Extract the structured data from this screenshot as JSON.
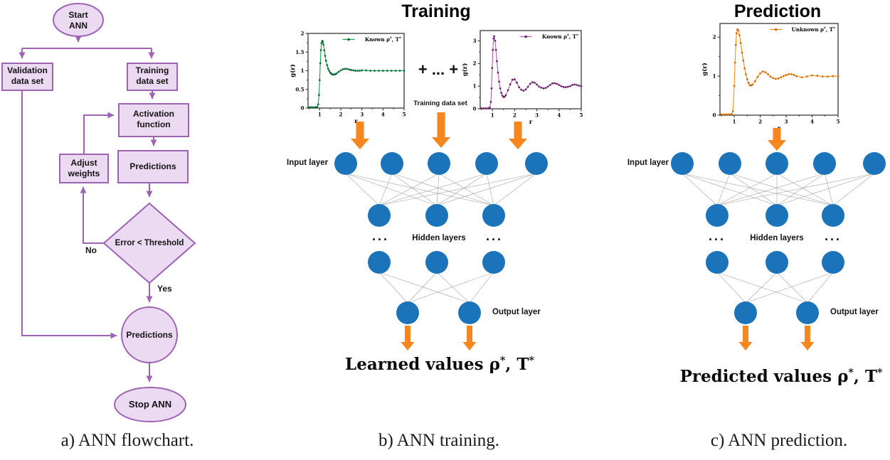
{
  "panels": {
    "flowchart": {
      "caption": "a) ANN flowchart.",
      "nodes": {
        "start": "Start\nANN",
        "validation": "Validation\ndata set",
        "training": "Training\ndata set",
        "activation": "Activation\nfunction",
        "adjust": "Adjust\nweights",
        "predictions_box": "Predictions",
        "decision": "Error < Threshold",
        "predictions_circle": "Predictions",
        "stop": "Stop ANN"
      },
      "edge_labels": {
        "no": "No",
        "yes": "Yes"
      }
    },
    "training": {
      "title": "Training",
      "plus_text": "+ ... +",
      "dataset_label": "Training data set",
      "network": {
        "input_label": "Input layer",
        "hidden_label": "Hidden layers",
        "output_label": "Output layer",
        "dots": "...",
        "input_nodes": 5,
        "hidden_rows": [
          3,
          3
        ],
        "output_nodes": 2
      },
      "result_text": "Learned values ρ*, T*",
      "caption": "b) ANN training."
    },
    "prediction": {
      "title": "Prediction",
      "network": {
        "input_label": "Input layer",
        "hidden_label": "Hidden layers",
        "output_label": "Output layer",
        "dots": "...",
        "input_nodes": 5,
        "hidden_rows": [
          3,
          3
        ],
        "output_nodes": 2
      },
      "result_text": "Predicted values ρ*, T*",
      "caption": "c) ANN prediction."
    }
  },
  "chart_data": [
    {
      "id": "training-gr-1",
      "type": "line",
      "xlabel": "r",
      "ylabel": "g(r)",
      "xlim": [
        0.45,
        5.0
      ],
      "ylim": [
        0,
        2.0
      ],
      "xticks": [
        1,
        2,
        3,
        4,
        5
      ],
      "yticks": [
        0,
        0.5,
        1,
        1.5,
        2
      ],
      "legend_position": "top-right",
      "series": [
        {
          "name": "Known ρ*, T*",
          "color": "#10a14e",
          "marker_color": "#0b6b34",
          "x": [
            0.5,
            0.6,
            0.7,
            0.8,
            0.88,
            0.93,
            0.97,
            1.0,
            1.03,
            1.06,
            1.09,
            1.12,
            1.15,
            1.18,
            1.22,
            1.26,
            1.3,
            1.35,
            1.4,
            1.45,
            1.5,
            1.55,
            1.6,
            1.65,
            1.7,
            1.75,
            1.8,
            1.9,
            2.0,
            2.1,
            2.2,
            2.3,
            2.4,
            2.5,
            2.6,
            2.7,
            2.8,
            2.9,
            3.0,
            3.2,
            3.4,
            3.6,
            3.8,
            4.0,
            4.2,
            4.4,
            4.6,
            4.8,
            5.0
          ],
          "y": [
            0.02,
            0.02,
            0.02,
            0.02,
            0.03,
            0.1,
            0.35,
            0.75,
            1.2,
            1.55,
            1.74,
            1.8,
            1.78,
            1.7,
            1.55,
            1.4,
            1.27,
            1.15,
            1.06,
            1.0,
            0.95,
            0.92,
            0.9,
            0.9,
            0.9,
            0.91,
            0.93,
            0.97,
            1.01,
            1.04,
            1.05,
            1.05,
            1.03,
            1.02,
            1.01,
            1.0,
            1.0,
            1.0,
            1.01,
            1.01,
            1.0,
            1.0,
            1.0,
            1.0,
            1.0,
            1.0,
            1.0,
            1.0,
            1.0
          ]
        }
      ]
    },
    {
      "id": "training-gr-2",
      "type": "line",
      "xlabel": "r",
      "ylabel": "g(r)",
      "xlim": [
        0.45,
        5.0
      ],
      "ylim": [
        0,
        3.45
      ],
      "xticks": [
        1,
        2,
        3,
        4,
        5
      ],
      "yticks": [
        0,
        1,
        2,
        3
      ],
      "legend_position": "top-right",
      "series": [
        {
          "name": "Known ρ*, T*",
          "color": "#b85cb8",
          "marker_color": "#6b2465",
          "x": [
            0.5,
            0.6,
            0.7,
            0.8,
            0.88,
            0.93,
            0.96,
            0.99,
            1.02,
            1.05,
            1.08,
            1.12,
            1.16,
            1.2,
            1.25,
            1.3,
            1.35,
            1.4,
            1.45,
            1.5,
            1.55,
            1.6,
            1.7,
            1.8,
            1.9,
            2.0,
            2.1,
            2.2,
            2.3,
            2.4,
            2.5,
            2.6,
            2.7,
            2.8,
            2.9,
            3.0,
            3.1,
            3.2,
            3.3,
            3.4,
            3.5,
            3.6,
            3.7,
            3.8,
            3.9,
            4.0,
            4.1,
            4.2,
            4.3,
            4.4,
            4.5,
            4.6,
            4.7,
            4.8,
            4.9,
            5.0
          ],
          "y": [
            0.02,
            0.02,
            0.02,
            0.02,
            0.05,
            0.3,
            0.9,
            1.8,
            2.6,
            3.1,
            3.2,
            3.0,
            2.6,
            2.1,
            1.6,
            1.2,
            0.9,
            0.7,
            0.58,
            0.52,
            0.53,
            0.6,
            0.82,
            1.08,
            1.28,
            1.3,
            1.15,
            0.95,
            0.84,
            0.8,
            0.85,
            0.97,
            1.1,
            1.17,
            1.15,
            1.07,
            0.98,
            0.93,
            0.9,
            0.92,
            0.98,
            1.05,
            1.12,
            1.13,
            1.1,
            1.05,
            1.0,
            0.96,
            0.95,
            0.97,
            1.0,
            1.05,
            1.07,
            1.05,
            1.02,
            1.0
          ]
        }
      ]
    },
    {
      "id": "prediction-gr",
      "type": "line",
      "xlabel": "r",
      "ylabel": "g(r)",
      "xlim": [
        0.45,
        5.0
      ],
      "ylim": [
        0,
        2.35
      ],
      "xticks": [
        1,
        2,
        3,
        4,
        5
      ],
      "yticks": [
        0,
        1,
        2
      ],
      "legend_position": "top-right",
      "series": [
        {
          "name": "Unknown ρ*, T*",
          "color": "#f78f1e",
          "marker_color": "#d96d00",
          "x": [
            0.5,
            0.6,
            0.7,
            0.8,
            0.9,
            0.95,
            1.0,
            1.03,
            1.06,
            1.09,
            1.12,
            1.16,
            1.2,
            1.25,
            1.3,
            1.35,
            1.4,
            1.45,
            1.5,
            1.55,
            1.6,
            1.65,
            1.7,
            1.8,
            1.9,
            2.0,
            2.1,
            2.2,
            2.3,
            2.4,
            2.5,
            2.6,
            2.7,
            2.8,
            2.9,
            3.0,
            3.1,
            3.2,
            3.3,
            3.4,
            3.6,
            3.8,
            4.0,
            4.2,
            4.4,
            4.6,
            4.8,
            5.0
          ],
          "y": [
            0.02,
            0.02,
            0.02,
            0.02,
            0.03,
            0.1,
            0.75,
            1.35,
            1.8,
            2.1,
            2.2,
            2.17,
            2.05,
            1.85,
            1.6,
            1.4,
            1.2,
            1.05,
            0.92,
            0.83,
            0.77,
            0.76,
            0.78,
            0.87,
            0.98,
            1.07,
            1.12,
            1.1,
            1.05,
            0.99,
            0.95,
            0.93,
            0.94,
            0.97,
            1.0,
            1.03,
            1.05,
            1.05,
            1.03,
            1.0,
            0.97,
            0.99,
            1.02,
            1.01,
            0.99,
            0.99,
            1.0,
            1.0
          ]
        }
      ]
    }
  ],
  "colors": {
    "node_blue": "#1b73b9",
    "arrow_orange": "#f6861d",
    "flow_fill": "#ecd9f2",
    "flow_stroke": "#9d64b4",
    "connection_gray": "#9a9a9a",
    "axis": "#2a2a2a"
  }
}
